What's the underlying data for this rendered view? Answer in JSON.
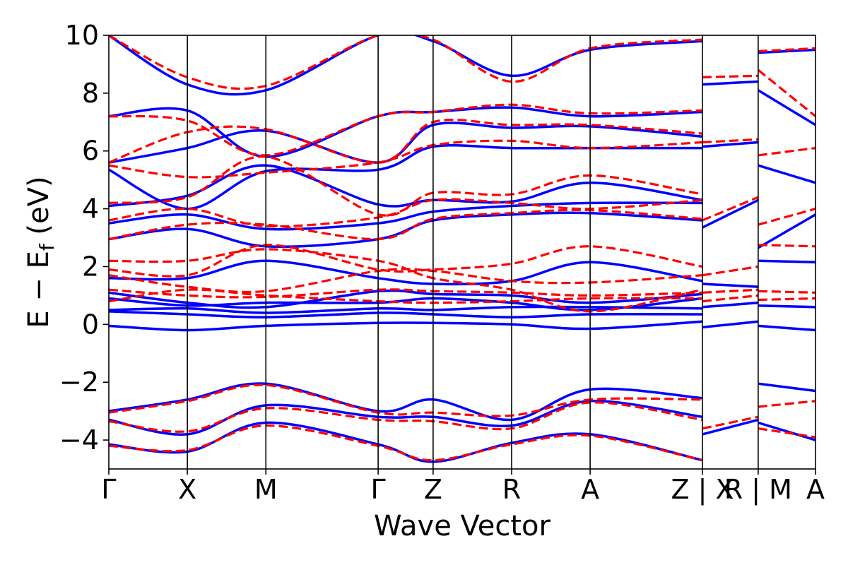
{
  "chart_data": {
    "type": "line",
    "title": "",
    "xlabel": "Wave Vector",
    "ylabel": "E − E",
    "ylabel_sub": "f",
    "ylabel_unit": " (eV)",
    "ylim": [
      -5,
      10
    ],
    "yticks": [
      {
        "value": -4,
        "label": "−4"
      },
      {
        "value": -2,
        "label": "−2"
      },
      {
        "value": 0,
        "label": "0"
      },
      {
        "value": 2,
        "label": "2"
      },
      {
        "value": 4,
        "label": "4"
      },
      {
        "value": 6,
        "label": "6"
      },
      {
        "value": 8,
        "label": "8"
      },
      {
        "value": 10,
        "label": "10"
      }
    ],
    "xlim": [
      0,
      9.0
    ],
    "kpoints": [
      {
        "label": "Γ",
        "x": 0.0
      },
      {
        "label": "X",
        "x": 1.0
      },
      {
        "label": "M",
        "x": 2.0
      },
      {
        "label": "Γ",
        "x": 3.43
      },
      {
        "label": "Z",
        "x": 4.13
      },
      {
        "label": "R",
        "x": 5.13
      },
      {
        "label": "A",
        "x": 6.13
      },
      {
        "label": "Z | X",
        "x": 7.56
      },
      {
        "label": "R | M",
        "x": 8.27
      },
      {
        "label": "A",
        "x": 9.0
      }
    ],
    "grid": false,
    "colors": {
      "series_a": "#0000ff",
      "series_b": "#ff0000",
      "frame": "#000000"
    },
    "series": [
      {
        "style": "solid",
        "color": "#0000ff",
        "bands": [
          {
            "x": [
              0,
              1,
              2,
              3.43,
              4.13,
              5.13,
              6.13,
              7.56
            ],
            "y": [
              -0.05,
              -0.2,
              -0.05,
              0.05,
              0.05,
              0.0,
              -0.15,
              0.1
            ]
          },
          {
            "x": [
              0,
              1,
              2,
              3.43,
              4.13,
              5.13,
              6.13,
              7.56
            ],
            "y": [
              0.45,
              0.35,
              0.25,
              0.4,
              0.35,
              0.25,
              0.35,
              0.35
            ]
          },
          {
            "x": [
              0,
              1,
              2,
              3.43,
              4.13,
              5.13,
              6.13,
              7.56
            ],
            "y": [
              0.5,
              0.55,
              0.4,
              0.55,
              0.5,
              0.6,
              0.6,
              0.55
            ]
          },
          {
            "x": [
              0,
              1,
              2,
              3.43,
              4.13,
              5.13,
              6.13,
              7.56
            ],
            "y": [
              0.9,
              0.65,
              0.75,
              0.75,
              0.9,
              0.75,
              0.5,
              0.9
            ]
          },
          {
            "x": [
              0,
              1,
              2,
              3.43,
              4.13,
              5.13,
              6.13,
              7.56
            ],
            "y": [
              1.1,
              0.75,
              0.6,
              1.15,
              1.05,
              1.0,
              0.75,
              1.05
            ]
          },
          {
            "x": [
              0,
              1,
              2,
              3.43,
              4.13,
              5.13,
              6.13,
              7.56
            ],
            "y": [
              1.6,
              1.6,
              2.2,
              1.6,
              1.4,
              1.5,
              2.15,
              1.5
            ]
          },
          {
            "x": [
              0,
              1,
              2,
              3.43,
              4.13,
              5.13,
              6.13,
              7.56
            ],
            "y": [
              2.95,
              3.3,
              2.7,
              2.95,
              3.6,
              3.8,
              3.85,
              3.6
            ]
          },
          {
            "x": [
              0,
              1,
              2,
              3.43,
              4.13,
              5.13,
              6.13,
              7.56
            ],
            "y": [
              3.5,
              3.8,
              3.3,
              3.5,
              3.9,
              4.1,
              4.2,
              4.2
            ]
          },
          {
            "x": [
              0,
              1,
              2,
              3.43,
              4.13,
              5.13,
              6.13,
              7.56
            ],
            "y": [
              4.1,
              4.45,
              5.5,
              4.15,
              4.3,
              4.25,
              4.9,
              4.3
            ]
          },
          {
            "x": [
              0,
              1,
              2,
              3.43,
              4.13,
              5.13,
              6.13,
              7.56
            ],
            "y": [
              5.35,
              4.0,
              5.3,
              5.35,
              6.15,
              6.1,
              6.1,
              6.1
            ]
          },
          {
            "x": [
              0,
              1,
              2,
              3.43,
              4.13,
              5.13,
              6.13,
              7.56
            ],
            "y": [
              5.6,
              6.1,
              6.7,
              5.6,
              6.9,
              6.8,
              6.85,
              6.5
            ]
          },
          {
            "x": [
              0,
              1,
              2,
              3.43,
              4.13,
              5.13,
              6.13,
              7.56
            ],
            "y": [
              7.2,
              7.4,
              5.8,
              7.2,
              7.35,
              7.5,
              7.2,
              7.35
            ]
          },
          {
            "x": [
              0,
              1,
              2,
              3.43,
              4.13,
              5.13,
              6.13,
              7.56
            ],
            "y": [
              10.0,
              8.3,
              8.1,
              10.0,
              9.8,
              8.6,
              9.5,
              9.8
            ]
          },
          {
            "x": [
              0,
              1,
              2,
              3.43,
              4.13,
              5.13,
              6.13,
              7.56
            ],
            "y": [
              -3.0,
              -2.6,
              -2.05,
              -3.0,
              -2.6,
              -3.3,
              -2.25,
              -2.55
            ]
          },
          {
            "x": [
              0,
              1,
              2,
              3.43,
              4.13,
              5.13,
              6.13,
              7.56
            ],
            "y": [
              -3.3,
              -3.8,
              -2.8,
              -3.2,
              -3.2,
              -3.5,
              -2.65,
              -3.2
            ]
          },
          {
            "x": [
              0,
              1,
              2,
              3.43,
              4.13,
              5.13,
              6.13,
              7.56
            ],
            "y": [
              -4.15,
              -4.4,
              -3.4,
              -4.15,
              -4.75,
              -4.1,
              -3.8,
              -4.7
            ]
          },
          {
            "x": [
              7.56,
              8.27
            ],
            "y": [
              -0.1,
              0.1
            ]
          },
          {
            "x": [
              7.56,
              8.27
            ],
            "y": [
              0.6,
              0.75
            ]
          },
          {
            "x": [
              7.56,
              8.27
            ],
            "y": [
              1.4,
              1.3
            ]
          },
          {
            "x": [
              7.56,
              8.27
            ],
            "y": [
              3.35,
              4.3
            ]
          },
          {
            "x": [
              7.56,
              8.27
            ],
            "y": [
              6.15,
              6.3
            ]
          },
          {
            "x": [
              7.56,
              8.27
            ],
            "y": [
              8.3,
              8.4
            ]
          },
          {
            "x": [
              7.56,
              8.27
            ],
            "y": [
              -3.8,
              -3.3
            ]
          },
          {
            "x": [
              8.27,
              9.0
            ],
            "y": [
              -0.05,
              -0.2
            ]
          },
          {
            "x": [
              8.27,
              9.0
            ],
            "y": [
              0.65,
              0.6
            ]
          },
          {
            "x": [
              8.27,
              9.0
            ],
            "y": [
              2.2,
              2.15
            ]
          },
          {
            "x": [
              8.27,
              9.0
            ],
            "y": [
              2.65,
              3.8
            ]
          },
          {
            "x": [
              8.27,
              9.0
            ],
            "y": [
              5.5,
              4.9
            ]
          },
          {
            "x": [
              8.27,
              9.0
            ],
            "y": [
              8.1,
              6.9
            ]
          },
          {
            "x": [
              8.27,
              9.0
            ],
            "y": [
              9.4,
              9.5
            ]
          },
          {
            "x": [
              8.27,
              9.0
            ],
            "y": [
              -2.05,
              -2.3
            ]
          },
          {
            "x": [
              8.27,
              9.0
            ],
            "y": [
              -3.4,
              -4.0
            ]
          }
        ]
      },
      {
        "style": "dashed",
        "color": "#ff0000",
        "bands": [
          {
            "x": [
              0,
              1,
              2,
              3.43,
              4.13,
              5.13,
              6.13,
              7.56
            ],
            "y": [
              0.8,
              1.2,
              1.0,
              0.8,
              0.75,
              0.8,
              0.9,
              0.9
            ]
          },
          {
            "x": [
              0,
              1,
              2,
              3.43,
              4.13,
              5.13,
              6.13,
              7.56
            ],
            "y": [
              1.2,
              1.0,
              0.95,
              1.2,
              1.15,
              1.1,
              1.0,
              1.1
            ]
          },
          {
            "x": [
              0,
              1,
              2,
              3.43,
              4.13,
              5.13,
              6.13,
              7.56
            ],
            "y": [
              1.7,
              1.3,
              1.15,
              1.85,
              1.85,
              1.5,
              1.45,
              1.7
            ]
          },
          {
            "x": [
              0,
              1,
              2,
              3.43,
              4.13,
              5.13,
              6.13,
              7.56
            ],
            "y": [
              1.9,
              1.7,
              2.75,
              1.9,
              1.9,
              2.1,
              2.7,
              2.0
            ]
          },
          {
            "x": [
              0,
              1,
              2,
              3.43,
              4.13,
              5.13,
              6.13,
              7.56
            ],
            "y": [
              2.2,
              2.2,
              2.6,
              2.2,
              1.6,
              1.2,
              0.45,
              1.2
            ]
          },
          {
            "x": [
              0,
              1,
              2,
              3.43,
              4.13,
              5.13,
              6.13,
              7.56
            ],
            "y": [
              2.95,
              3.45,
              3.45,
              2.95,
              3.65,
              3.85,
              3.95,
              3.65
            ]
          },
          {
            "x": [
              0,
              1,
              2,
              3.43,
              4.13,
              5.13,
              6.13,
              7.56
            ],
            "y": [
              3.6,
              4.0,
              3.4,
              3.7,
              4.3,
              4.2,
              4.0,
              4.3
            ]
          },
          {
            "x": [
              0,
              1,
              2,
              3.43,
              4.13,
              5.13,
              6.13,
              7.56
            ],
            "y": [
              4.2,
              4.4,
              5.8,
              3.8,
              4.55,
              4.5,
              5.15,
              4.5
            ]
          },
          {
            "x": [
              0,
              1,
              2,
              3.43,
              4.13,
              5.13,
              6.13,
              7.56
            ],
            "y": [
              5.5,
              5.1,
              5.25,
              5.6,
              6.2,
              6.35,
              6.1,
              6.3
            ]
          },
          {
            "x": [
              0,
              1,
              2,
              3.43,
              4.13,
              5.13,
              6.13,
              7.56
            ],
            "y": [
              5.6,
              6.65,
              6.75,
              5.6,
              7.0,
              6.9,
              6.9,
              6.6
            ]
          },
          {
            "x": [
              0,
              1,
              2,
              3.43,
              4.13,
              5.13,
              6.13,
              7.56
            ],
            "y": [
              7.2,
              7.05,
              5.85,
              7.2,
              7.35,
              7.6,
              7.3,
              7.4
            ]
          },
          {
            "x": [
              0,
              1,
              2,
              3.43,
              4.13,
              5.13,
              6.13,
              7.56
            ],
            "y": [
              10.0,
              8.55,
              8.25,
              10.0,
              9.85,
              8.4,
              9.55,
              9.85
            ]
          },
          {
            "x": [
              0,
              1,
              2,
              3.43,
              4.13,
              5.13,
              6.13,
              7.56
            ],
            "y": [
              -3.05,
              -2.65,
              -2.1,
              -3.05,
              -3.05,
              -3.15,
              -2.6,
              -2.6
            ]
          },
          {
            "x": [
              0,
              1,
              2,
              3.43,
              4.13,
              5.13,
              6.13,
              7.56
            ],
            "y": [
              -3.35,
              -3.7,
              -2.9,
              -3.3,
              -3.35,
              -3.6,
              -2.7,
              -3.3
            ]
          },
          {
            "x": [
              0,
              1,
              2,
              3.43,
              4.13,
              5.13,
              6.13,
              7.56
            ],
            "y": [
              -4.2,
              -4.35,
              -3.5,
              -4.2,
              -4.7,
              -4.15,
              -3.85,
              -4.7
            ]
          },
          {
            "x": [
              7.56,
              8.27
            ],
            "y": [
              0.8,
              1.0
            ]
          },
          {
            "x": [
              7.56,
              8.27
            ],
            "y": [
              1.1,
              1.2
            ]
          },
          {
            "x": [
              7.56,
              8.27
            ],
            "y": [
              1.7,
              2.0
            ]
          },
          {
            "x": [
              7.56,
              8.27
            ],
            "y": [
              3.6,
              4.4
            ]
          },
          {
            "x": [
              7.56,
              8.27
            ],
            "y": [
              6.3,
              6.4
            ]
          },
          {
            "x": [
              7.56,
              8.27
            ],
            "y": [
              8.55,
              8.6
            ]
          },
          {
            "x": [
              7.56,
              8.27
            ],
            "y": [
              -3.6,
              -3.2
            ]
          },
          {
            "x": [
              8.27,
              9.0
            ],
            "y": [
              0.85,
              0.9
            ]
          },
          {
            "x": [
              8.27,
              9.0
            ],
            "y": [
              1.15,
              1.1
            ]
          },
          {
            "x": [
              8.27,
              9.0
            ],
            "y": [
              2.75,
              2.7
            ]
          },
          {
            "x": [
              8.27,
              9.0
            ],
            "y": [
              3.45,
              4.0
            ]
          },
          {
            "x": [
              8.27,
              9.0
            ],
            "y": [
              5.85,
              6.1
            ]
          },
          {
            "x": [
              8.27,
              9.0
            ],
            "y": [
              8.8,
              7.2
            ]
          },
          {
            "x": [
              8.27,
              9.0
            ],
            "y": [
              9.45,
              9.55
            ]
          },
          {
            "x": [
              8.27,
              9.0
            ],
            "y": [
              -2.85,
              -2.65
            ]
          },
          {
            "x": [
              8.27,
              9.0
            ],
            "y": [
              -3.6,
              -3.9
            ]
          }
        ]
      }
    ]
  }
}
